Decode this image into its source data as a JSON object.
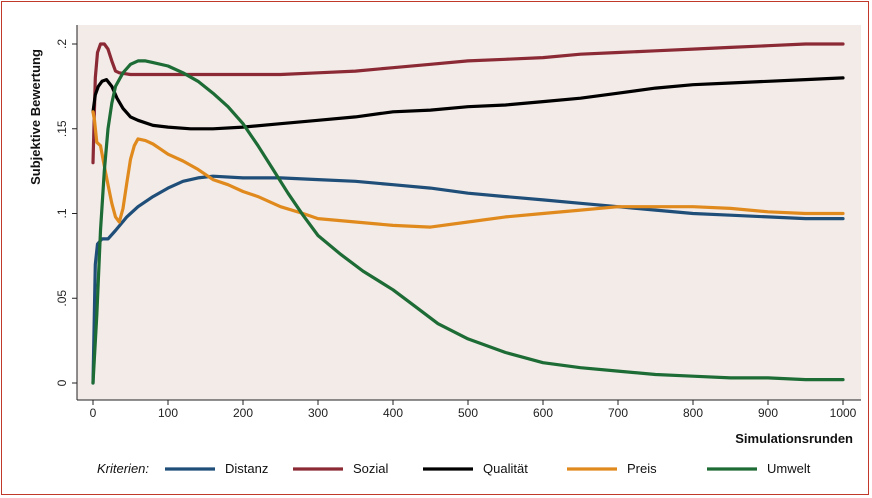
{
  "chart_data": {
    "type": "line",
    "title": "",
    "xlabel": "Simulationsrunden",
    "ylabel": "Subjektive Bewertung",
    "xlim": [
      0,
      1000
    ],
    "ylim": [
      0,
      0.2
    ],
    "x_ticks": [
      0,
      100,
      200,
      300,
      400,
      500,
      600,
      700,
      800,
      900,
      1000
    ],
    "x_tick_labels": [
      "0",
      "100",
      "200",
      "300",
      "400",
      "500",
      "600",
      "700",
      "800",
      "900",
      "1000"
    ],
    "y_ticks": [
      0,
      0.05,
      0.1,
      0.15,
      0.2
    ],
    "y_tick_labels": [
      "0",
      ".05",
      ".1",
      ".15",
      ".2"
    ],
    "grid": false,
    "background": "#f3ebe8",
    "legend": {
      "title": "Kriterien:",
      "placement": "bottom"
    },
    "series": [
      {
        "name": "Distanz",
        "color": "#1f4e79",
        "points": [
          [
            0,
            0
          ],
          [
            3,
            0.07
          ],
          [
            6,
            0.082
          ],
          [
            12,
            0.085
          ],
          [
            20,
            0.085
          ],
          [
            30,
            0.09
          ],
          [
            45,
            0.098
          ],
          [
            60,
            0.104
          ],
          [
            80,
            0.11
          ],
          [
            100,
            0.115
          ],
          [
            120,
            0.119
          ],
          [
            140,
            0.121
          ],
          [
            160,
            0.122
          ],
          [
            200,
            0.121
          ],
          [
            250,
            0.121
          ],
          [
            300,
            0.12
          ],
          [
            350,
            0.119
          ],
          [
            400,
            0.117
          ],
          [
            450,
            0.115
          ],
          [
            500,
            0.112
          ],
          [
            550,
            0.11
          ],
          [
            600,
            0.108
          ],
          [
            650,
            0.106
          ],
          [
            700,
            0.104
          ],
          [
            750,
            0.102
          ],
          [
            800,
            0.1
          ],
          [
            850,
            0.099
          ],
          [
            900,
            0.098
          ],
          [
            950,
            0.097
          ],
          [
            1000,
            0.097
          ]
        ]
      },
      {
        "name": "Sozial",
        "color": "#8b2a35",
        "points": [
          [
            0,
            0.13
          ],
          [
            3,
            0.18
          ],
          [
            6,
            0.195
          ],
          [
            10,
            0.2
          ],
          [
            15,
            0.2
          ],
          [
            20,
            0.197
          ],
          [
            25,
            0.19
          ],
          [
            30,
            0.184
          ],
          [
            35,
            0.183
          ],
          [
            50,
            0.182
          ],
          [
            100,
            0.182
          ],
          [
            150,
            0.182
          ],
          [
            200,
            0.182
          ],
          [
            250,
            0.182
          ],
          [
            300,
            0.183
          ],
          [
            350,
            0.184
          ],
          [
            400,
            0.186
          ],
          [
            450,
            0.188
          ],
          [
            500,
            0.19
          ],
          [
            550,
            0.191
          ],
          [
            600,
            0.192
          ],
          [
            650,
            0.194
          ],
          [
            700,
            0.195
          ],
          [
            750,
            0.196
          ],
          [
            800,
            0.197
          ],
          [
            850,
            0.198
          ],
          [
            900,
            0.199
          ],
          [
            950,
            0.2
          ],
          [
            1000,
            0.2
          ]
        ]
      },
      {
        "name": "Qualität",
        "color": "#000000",
        "points": [
          [
            0,
            0.16
          ],
          [
            3,
            0.17
          ],
          [
            7,
            0.175
          ],
          [
            12,
            0.178
          ],
          [
            18,
            0.179
          ],
          [
            25,
            0.175
          ],
          [
            32,
            0.168
          ],
          [
            40,
            0.162
          ],
          [
            50,
            0.157
          ],
          [
            60,
            0.155
          ],
          [
            80,
            0.152
          ],
          [
            100,
            0.151
          ],
          [
            130,
            0.15
          ],
          [
            160,
            0.15
          ],
          [
            200,
            0.151
          ],
          [
            250,
            0.153
          ],
          [
            300,
            0.155
          ],
          [
            350,
            0.157
          ],
          [
            400,
            0.16
          ],
          [
            450,
            0.161
          ],
          [
            500,
            0.163
          ],
          [
            550,
            0.164
          ],
          [
            600,
            0.166
          ],
          [
            650,
            0.168
          ],
          [
            700,
            0.171
          ],
          [
            750,
            0.174
          ],
          [
            800,
            0.176
          ],
          [
            850,
            0.177
          ],
          [
            900,
            0.178
          ],
          [
            950,
            0.179
          ],
          [
            1000,
            0.18
          ]
        ]
      },
      {
        "name": "Preis",
        "color": "#e08a1e",
        "points": [
          [
            0,
            0.16
          ],
          [
            2,
            0.155
          ],
          [
            5,
            0.142
          ],
          [
            10,
            0.14
          ],
          [
            15,
            0.128
          ],
          [
            20,
            0.117
          ],
          [
            25,
            0.106
          ],
          [
            30,
            0.098
          ],
          [
            35,
            0.095
          ],
          [
            40,
            0.103
          ],
          [
            45,
            0.118
          ],
          [
            50,
            0.132
          ],
          [
            55,
            0.14
          ],
          [
            60,
            0.144
          ],
          [
            70,
            0.143
          ],
          [
            80,
            0.141
          ],
          [
            90,
            0.138
          ],
          [
            100,
            0.135
          ],
          [
            120,
            0.131
          ],
          [
            140,
            0.126
          ],
          [
            160,
            0.12
          ],
          [
            180,
            0.117
          ],
          [
            200,
            0.113
          ],
          [
            220,
            0.11
          ],
          [
            250,
            0.104
          ],
          [
            280,
            0.1
          ],
          [
            300,
            0.097
          ],
          [
            350,
            0.095
          ],
          [
            400,
            0.093
          ],
          [
            450,
            0.092
          ],
          [
            500,
            0.095
          ],
          [
            550,
            0.098
          ],
          [
            600,
            0.1
          ],
          [
            650,
            0.102
          ],
          [
            700,
            0.104
          ],
          [
            750,
            0.104
          ],
          [
            800,
            0.104
          ],
          [
            850,
            0.103
          ],
          [
            900,
            0.101
          ],
          [
            950,
            0.1
          ],
          [
            1000,
            0.1
          ]
        ]
      },
      {
        "name": "Umwelt",
        "color": "#1d6b35",
        "points": [
          [
            0,
            0
          ],
          [
            5,
            0.04
          ],
          [
            10,
            0.09
          ],
          [
            15,
            0.125
          ],
          [
            20,
            0.15
          ],
          [
            25,
            0.165
          ],
          [
            30,
            0.175
          ],
          [
            40,
            0.183
          ],
          [
            50,
            0.188
          ],
          [
            60,
            0.19
          ],
          [
            70,
            0.19
          ],
          [
            80,
            0.189
          ],
          [
            100,
            0.187
          ],
          [
            120,
            0.183
          ],
          [
            140,
            0.178
          ],
          [
            160,
            0.171
          ],
          [
            180,
            0.163
          ],
          [
            200,
            0.153
          ],
          [
            220,
            0.14
          ],
          [
            240,
            0.126
          ],
          [
            260,
            0.112
          ],
          [
            280,
            0.099
          ],
          [
            300,
            0.087
          ],
          [
            330,
            0.076
          ],
          [
            360,
            0.066
          ],
          [
            400,
            0.055
          ],
          [
            430,
            0.045
          ],
          [
            460,
            0.035
          ],
          [
            500,
            0.026
          ],
          [
            550,
            0.018
          ],
          [
            600,
            0.012
          ],
          [
            650,
            0.009
          ],
          [
            700,
            0.007
          ],
          [
            750,
            0.005
          ],
          [
            800,
            0.004
          ],
          [
            850,
            0.003
          ],
          [
            900,
            0.003
          ],
          [
            950,
            0.002
          ],
          [
            1000,
            0.002
          ]
        ]
      }
    ]
  }
}
